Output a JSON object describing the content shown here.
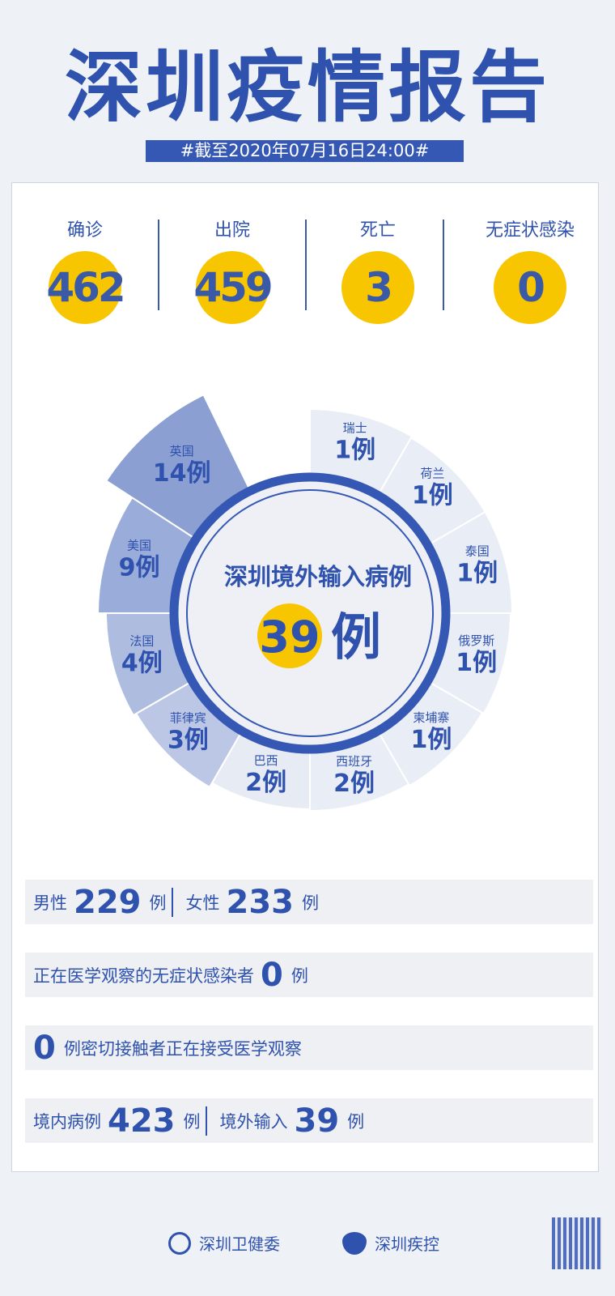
{
  "header": {
    "title": "深圳疫情报告",
    "date_banner": "#截至2020年07月16日24:00#"
  },
  "stats": [
    {
      "label": "确诊",
      "value": "462"
    },
    {
      "label": "出院",
      "value": "459"
    },
    {
      "label": "死亡",
      "value": "3"
    },
    {
      "label": "无症状感染",
      "value": "0"
    }
  ],
  "imported": {
    "title": "深圳境外输入病例",
    "total": "39",
    "unit": "例",
    "countries": [
      {
        "name": "瑞士",
        "count": 1,
        "label": "1例"
      },
      {
        "name": "荷兰",
        "count": 1,
        "label": "1例"
      },
      {
        "name": "泰国",
        "count": 1,
        "label": "1例"
      },
      {
        "name": "俄罗斯",
        "count": 1,
        "label": "1例"
      },
      {
        "name": "柬埔寨",
        "count": 1,
        "label": "1例"
      },
      {
        "name": "西班牙",
        "count": 2,
        "label": "2例"
      },
      {
        "name": "巴西",
        "count": 2,
        "label": "2例"
      },
      {
        "name": "菲律宾",
        "count": 3,
        "label": "3例"
      },
      {
        "name": "法国",
        "count": 4,
        "label": "4例"
      },
      {
        "name": "美国",
        "count": 9,
        "label": "9例"
      },
      {
        "name": "英国",
        "count": 14,
        "label": "14例"
      }
    ]
  },
  "rows": {
    "gender": {
      "male_label": "男性",
      "male": "229",
      "female_label": "女性",
      "female": "233",
      "unit": "例"
    },
    "asymptomatic": {
      "text": "正在医学观察的无症状感染者",
      "value": "0",
      "unit": "例"
    },
    "contacts": {
      "value": "0",
      "text": "例密切接触者正在接受医学观察"
    },
    "origin": {
      "local_label": "境内病例",
      "local": "423",
      "imported_label": "境外输入",
      "imported": "39",
      "unit": "例"
    }
  },
  "footer": {
    "org1": "深圳卫健委",
    "org2": "深圳疾控"
  },
  "colors": {
    "brand_blue": "#2f52ae",
    "yellow": "#f7c600",
    "background": "#eef1f5"
  }
}
